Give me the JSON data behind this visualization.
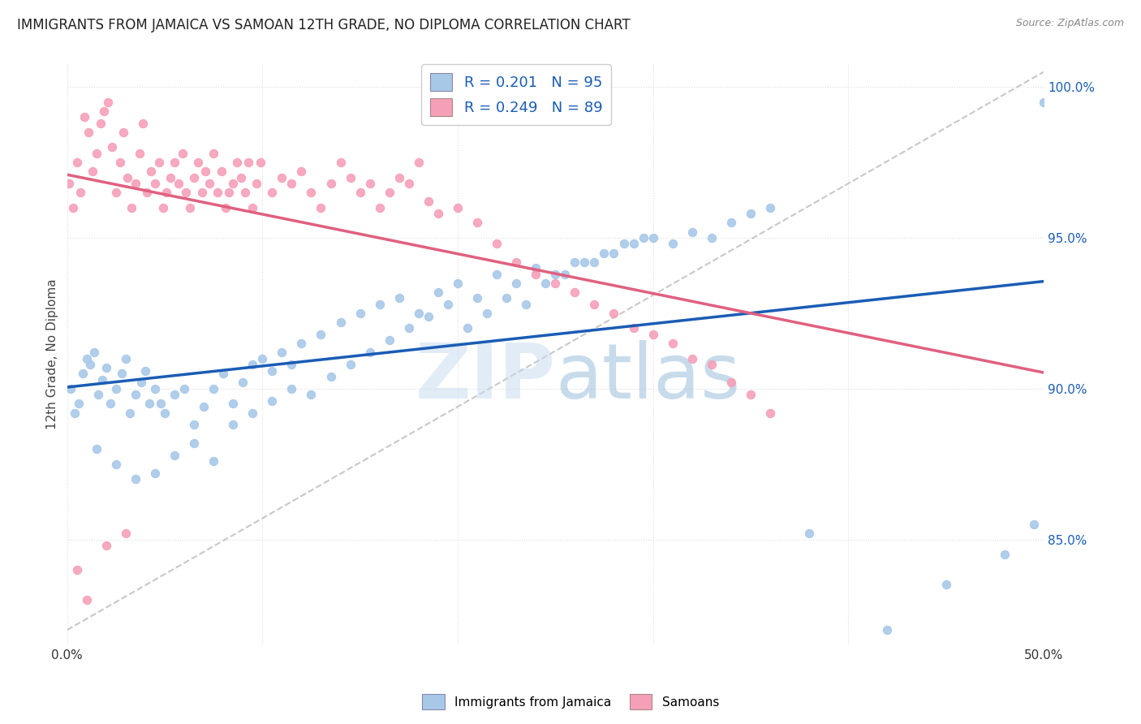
{
  "title": "IMMIGRANTS FROM JAMAICA VS SAMOAN 12TH GRADE, NO DIPLOMA CORRELATION CHART",
  "source": "Source: ZipAtlas.com",
  "ylabel": "12th Grade, No Diploma",
  "legend_blue_label": "Immigrants from Jamaica",
  "legend_pink_label": "Samoans",
  "watermark_zip": "ZIP",
  "watermark_atlas": "atlas",
  "blue_R": 0.201,
  "blue_N": 95,
  "pink_R": 0.249,
  "pink_N": 89,
  "xmin": 0.0,
  "xmax": 0.5,
  "ymin": 0.815,
  "ymax": 1.008,
  "yticks": [
    0.85,
    0.9,
    0.95,
    1.0
  ],
  "ytick_labels": [
    "85.0%",
    "90.0%",
    "95.0%",
    "100.0%"
  ],
  "xticks": [
    0.0,
    0.1,
    0.2,
    0.3,
    0.4,
    0.5
  ],
  "xtick_labels": [
    "0.0%",
    "",
    "",
    "",
    "",
    "50.0%"
  ],
  "blue_color": "#a8c8e8",
  "pink_color": "#f5a0b8",
  "blue_line_color": "#1a5cb5",
  "pink_line_color": "#e06080",
  "ref_line_color": "#c8c8c8",
  "title_fontsize": 12,
  "axis_label_fontsize": 11,
  "tick_fontsize": 11,
  "legend_fontsize": 13,
  "blue_scatter_x": [
    0.002,
    0.004,
    0.006,
    0.008,
    0.01,
    0.012,
    0.014,
    0.016,
    0.018,
    0.02,
    0.022,
    0.025,
    0.028,
    0.03,
    0.032,
    0.035,
    0.038,
    0.04,
    0.042,
    0.045,
    0.048,
    0.05,
    0.055,
    0.06,
    0.065,
    0.07,
    0.075,
    0.08,
    0.085,
    0.09,
    0.095,
    0.1,
    0.105,
    0.11,
    0.115,
    0.12,
    0.13,
    0.14,
    0.15,
    0.16,
    0.17,
    0.18,
    0.19,
    0.2,
    0.21,
    0.22,
    0.23,
    0.24,
    0.25,
    0.26,
    0.27,
    0.28,
    0.29,
    0.3,
    0.31,
    0.32,
    0.33,
    0.34,
    0.35,
    0.36,
    0.015,
    0.025,
    0.035,
    0.045,
    0.055,
    0.065,
    0.075,
    0.085,
    0.095,
    0.105,
    0.115,
    0.125,
    0.135,
    0.145,
    0.155,
    0.165,
    0.175,
    0.185,
    0.195,
    0.205,
    0.215,
    0.225,
    0.235,
    0.245,
    0.255,
    0.265,
    0.275,
    0.285,
    0.295,
    0.38,
    0.42,
    0.45,
    0.48,
    0.495,
    0.5
  ],
  "blue_scatter_y": [
    0.9,
    0.892,
    0.895,
    0.905,
    0.91,
    0.908,
    0.912,
    0.898,
    0.903,
    0.907,
    0.895,
    0.9,
    0.905,
    0.91,
    0.892,
    0.898,
    0.902,
    0.906,
    0.895,
    0.9,
    0.895,
    0.892,
    0.898,
    0.9,
    0.888,
    0.894,
    0.9,
    0.905,
    0.895,
    0.902,
    0.908,
    0.91,
    0.906,
    0.912,
    0.908,
    0.915,
    0.918,
    0.922,
    0.925,
    0.928,
    0.93,
    0.925,
    0.932,
    0.935,
    0.93,
    0.938,
    0.935,
    0.94,
    0.938,
    0.942,
    0.942,
    0.945,
    0.948,
    0.95,
    0.948,
    0.952,
    0.95,
    0.955,
    0.958,
    0.96,
    0.88,
    0.875,
    0.87,
    0.872,
    0.878,
    0.882,
    0.876,
    0.888,
    0.892,
    0.896,
    0.9,
    0.898,
    0.904,
    0.908,
    0.912,
    0.916,
    0.92,
    0.924,
    0.928,
    0.92,
    0.925,
    0.93,
    0.928,
    0.935,
    0.938,
    0.942,
    0.945,
    0.948,
    0.95,
    0.852,
    0.82,
    0.835,
    0.845,
    0.855,
    0.995
  ],
  "pink_scatter_x": [
    0.001,
    0.003,
    0.005,
    0.007,
    0.009,
    0.011,
    0.013,
    0.015,
    0.017,
    0.019,
    0.021,
    0.023,
    0.025,
    0.027,
    0.029,
    0.031,
    0.033,
    0.035,
    0.037,
    0.039,
    0.041,
    0.043,
    0.045,
    0.047,
    0.049,
    0.051,
    0.053,
    0.055,
    0.057,
    0.059,
    0.061,
    0.063,
    0.065,
    0.067,
    0.069,
    0.071,
    0.073,
    0.075,
    0.077,
    0.079,
    0.081,
    0.083,
    0.085,
    0.087,
    0.089,
    0.091,
    0.093,
    0.095,
    0.097,
    0.099,
    0.105,
    0.11,
    0.115,
    0.12,
    0.125,
    0.13,
    0.135,
    0.14,
    0.145,
    0.15,
    0.155,
    0.16,
    0.165,
    0.17,
    0.175,
    0.18,
    0.185,
    0.19,
    0.2,
    0.21,
    0.22,
    0.23,
    0.24,
    0.25,
    0.26,
    0.27,
    0.28,
    0.29,
    0.3,
    0.31,
    0.32,
    0.33,
    0.34,
    0.35,
    0.36,
    0.005,
    0.01,
    0.02,
    0.03
  ],
  "pink_scatter_y": [
    0.968,
    0.96,
    0.975,
    0.965,
    0.99,
    0.985,
    0.972,
    0.978,
    0.988,
    0.992,
    0.995,
    0.98,
    0.965,
    0.975,
    0.985,
    0.97,
    0.96,
    0.968,
    0.978,
    0.988,
    0.965,
    0.972,
    0.968,
    0.975,
    0.96,
    0.965,
    0.97,
    0.975,
    0.968,
    0.978,
    0.965,
    0.96,
    0.97,
    0.975,
    0.965,
    0.972,
    0.968,
    0.978,
    0.965,
    0.972,
    0.96,
    0.965,
    0.968,
    0.975,
    0.97,
    0.965,
    0.975,
    0.96,
    0.968,
    0.975,
    0.965,
    0.97,
    0.968,
    0.972,
    0.965,
    0.96,
    0.968,
    0.975,
    0.97,
    0.965,
    0.968,
    0.96,
    0.965,
    0.97,
    0.968,
    0.975,
    0.962,
    0.958,
    0.96,
    0.955,
    0.948,
    0.942,
    0.938,
    0.935,
    0.932,
    0.928,
    0.925,
    0.92,
    0.918,
    0.915,
    0.91,
    0.908,
    0.902,
    0.898,
    0.892,
    0.84,
    0.83,
    0.848,
    0.852
  ],
  "background_color": "#ffffff",
  "plot_bg_color": "#ffffff",
  "ref_line_x": [
    0.0,
    0.5
  ],
  "ref_line_y": [
    0.82,
    1.005
  ]
}
